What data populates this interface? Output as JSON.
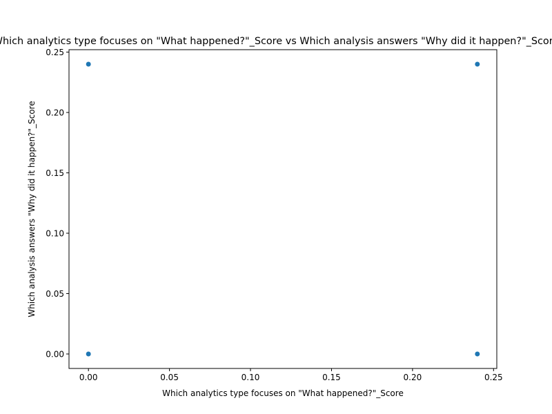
{
  "chart_data": {
    "type": "scatter",
    "title": "Which analytics type focuses on \"What happened?\"_Score vs Which analysis answers \"Why did it happen?\"_Score",
    "xlabel": "Which analytics type focuses on \"What happened?\"_Score",
    "ylabel": "Which analysis answers \"Why did it happen?\"_Score",
    "xlim": [
      -0.012,
      0.252
    ],
    "ylim": [
      -0.012,
      0.252
    ],
    "xticks": [
      0.0,
      0.05,
      0.1,
      0.15,
      0.2,
      0.25
    ],
    "yticks": [
      0.0,
      0.05,
      0.1,
      0.15,
      0.2,
      0.25
    ],
    "xtick_labels": [
      "0.00",
      "0.05",
      "0.10",
      "0.15",
      "0.20",
      "0.25"
    ],
    "ytick_labels": [
      "0.00",
      "0.05",
      "0.10",
      "0.15",
      "0.20",
      "0.25"
    ],
    "grid": false,
    "legend": "none",
    "color": "#1f77b4",
    "points": [
      {
        "x": 0.0,
        "y": 0.24
      },
      {
        "x": 0.24,
        "y": 0.24
      },
      {
        "x": 0.0,
        "y": 0.0
      },
      {
        "x": 0.24,
        "y": 0.0
      }
    ]
  }
}
